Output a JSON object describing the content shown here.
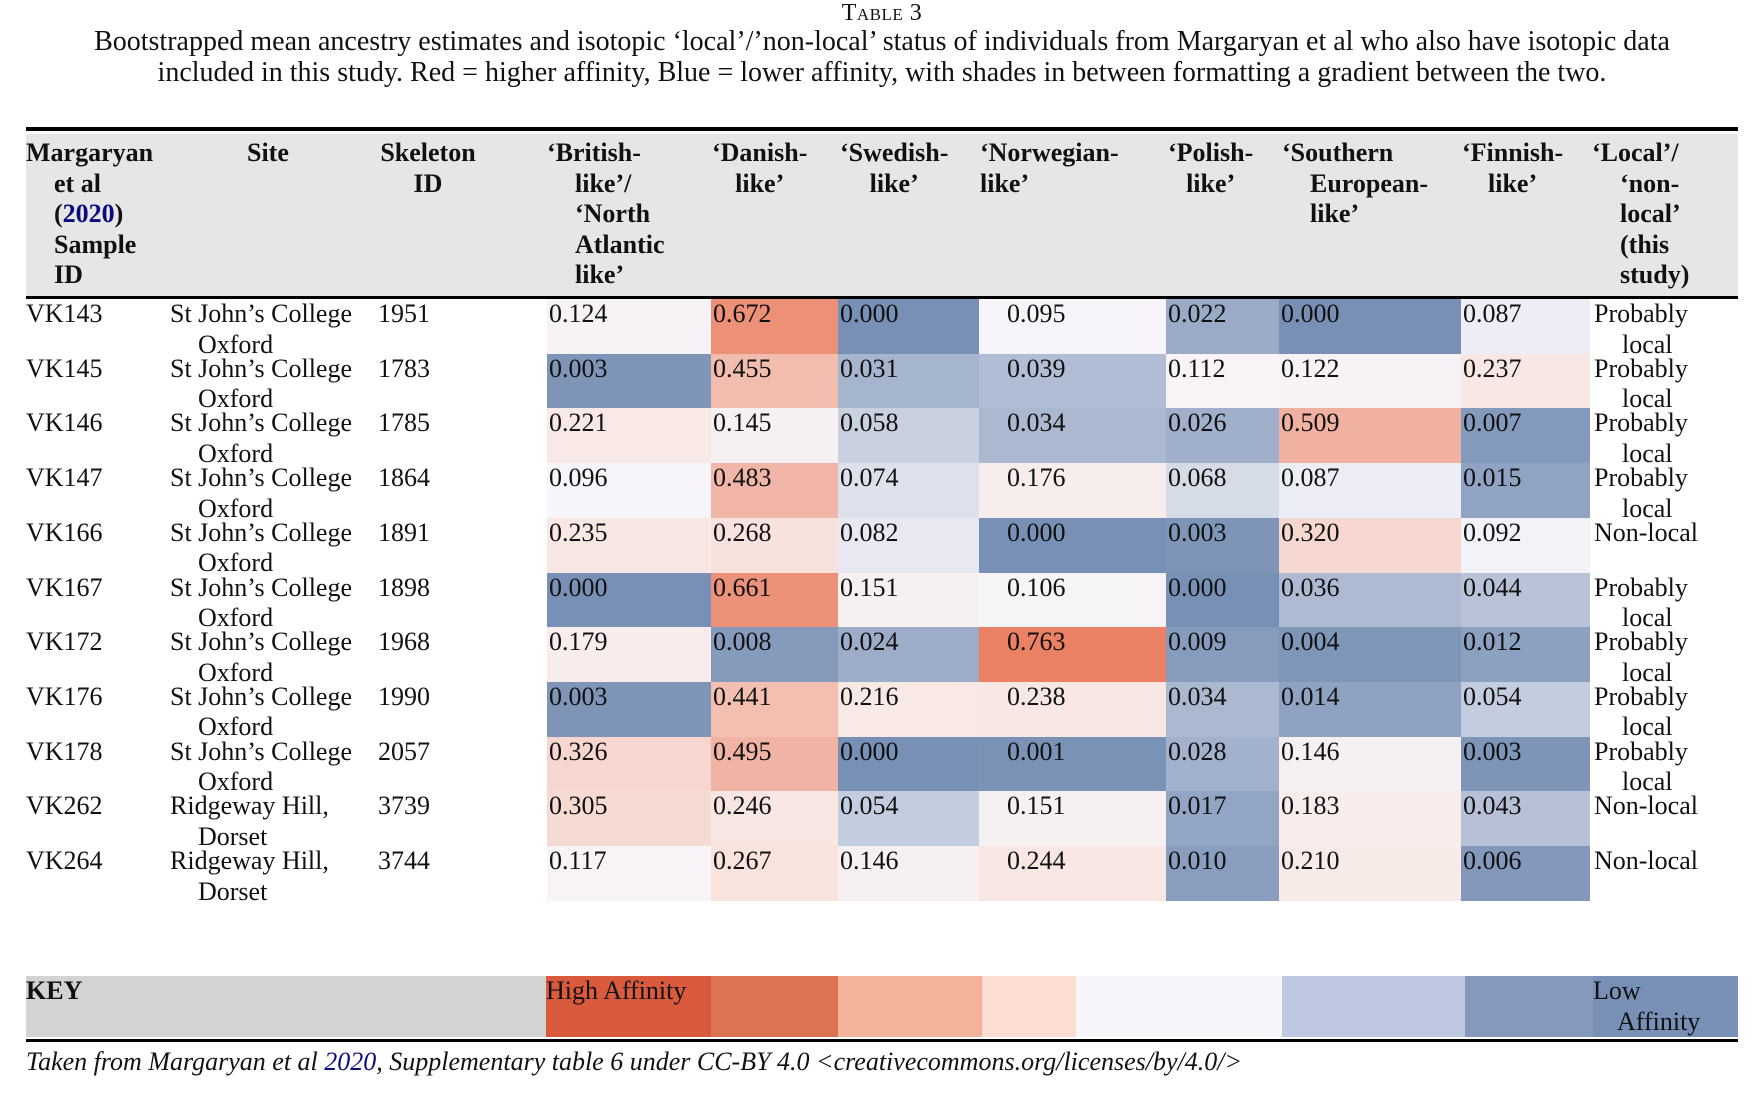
{
  "caption": {
    "label": "Table 3",
    "text": "Bootstrapped mean ancestry estimates and isotopic ‘local’/’non-local’ status of individuals from Margaryan et al who also have isotopic data included in this study. Red = higher affinity, Blue = lower affinity, with shades in between formatting a gradient between the two."
  },
  "header": {
    "sample_id": [
      "Margaryan",
      "et al",
      "(",
      "2020",
      ")",
      "Sample",
      "ID"
    ],
    "site": "Site",
    "skeleton_id": [
      "Skeleton",
      "ID"
    ],
    "british": [
      "‘British-",
      "like’/",
      "‘North",
      "Atlantic",
      "like’"
    ],
    "danish": [
      "‘Danish-",
      "like’"
    ],
    "swedish": [
      "‘Swedish-",
      "like’"
    ],
    "norwegian": [
      "‘Norwegian-",
      "like’"
    ],
    "polish": [
      "‘Polish-",
      "like’"
    ],
    "southern": [
      "‘Southern",
      "European-",
      "like’"
    ],
    "finnish": [
      "‘Finnish-",
      "like’"
    ],
    "local": [
      "‘Local’/",
      "‘non-",
      "local’",
      "(this",
      "study)"
    ]
  },
  "rows": [
    {
      "sample": "VK143",
      "site": [
        "St John’s College",
        "Oxford"
      ],
      "skeleton": "1951",
      "values": [
        "0.124",
        "0.672",
        "0.000",
        "0.095",
        "0.022",
        "0.000",
        "0.087"
      ],
      "status": [
        "Probably",
        "local"
      ]
    },
    {
      "sample": "VK145",
      "site": [
        "St John’s College",
        "Oxford"
      ],
      "skeleton": "1783",
      "values": [
        "0.003",
        "0.455",
        "0.031",
        "0.039",
        "0.112",
        "0.122",
        "0.237"
      ],
      "status": [
        "Probably",
        "local"
      ]
    },
    {
      "sample": "VK146",
      "site": [
        "St John’s College",
        "Oxford"
      ],
      "skeleton": "1785",
      "values": [
        "0.221",
        "0.145",
        "0.058",
        "0.034",
        "0.026",
        "0.509",
        "0.007"
      ],
      "status": [
        "Probably",
        "local"
      ]
    },
    {
      "sample": "VK147",
      "site": [
        "St John’s College",
        "Oxford"
      ],
      "skeleton": "1864",
      "values": [
        "0.096",
        "0.483",
        "0.074",
        "0.176",
        "0.068",
        "0.087",
        "0.015"
      ],
      "status": [
        "Probably",
        "local"
      ]
    },
    {
      "sample": "VK166",
      "site": [
        "St John’s College",
        "Oxford"
      ],
      "skeleton": "1891",
      "values": [
        "0.235",
        "0.268",
        "0.082",
        "0.000",
        "0.003",
        "0.320",
        "0.092"
      ],
      "status": [
        "Non-local",
        ""
      ]
    },
    {
      "sample": "VK167",
      "site": [
        "St John’s College",
        "Oxford"
      ],
      "skeleton": "1898",
      "values": [
        "0.000",
        "0.661",
        "0.151",
        "0.106",
        "0.000",
        "0.036",
        "0.044"
      ],
      "status": [
        "Probably",
        "local"
      ]
    },
    {
      "sample": "VK172",
      "site": [
        "St John’s College",
        "Oxford"
      ],
      "skeleton": "1968",
      "values": [
        "0.179",
        "0.008",
        "0.024",
        "0.763",
        "0.009",
        "0.004",
        "0.012"
      ],
      "status": [
        "Probably",
        "local"
      ]
    },
    {
      "sample": "VK176",
      "site": [
        "St John’s College",
        "Oxford"
      ],
      "skeleton": "1990",
      "values": [
        "0.003",
        "0.441",
        "0.216",
        "0.238",
        "0.034",
        "0.014",
        "0.054"
      ],
      "status": [
        "Probably",
        "local"
      ]
    },
    {
      "sample": "VK178",
      "site": [
        "St John’s College",
        "Oxford"
      ],
      "skeleton": "2057",
      "values": [
        "0.326",
        "0.495",
        "0.000",
        "0.001",
        "0.028",
        "0.146",
        "0.003"
      ],
      "status": [
        "Probably",
        "local"
      ]
    },
    {
      "sample": "VK262",
      "site": [
        "Ridgeway Hill,",
        "Dorset"
      ],
      "skeleton": "3739",
      "values": [
        "0.305",
        "0.246",
        "0.054",
        "0.151",
        "0.017",
        "0.183",
        "0.043"
      ],
      "status": [
        "Non-local",
        ""
      ]
    },
    {
      "sample": "VK264",
      "site": [
        "Ridgeway Hill,",
        "Dorset"
      ],
      "skeleton": "3744",
      "values": [
        "0.117",
        "0.267",
        "0.146",
        "0.244",
        "0.010",
        "0.210",
        "0.006"
      ],
      "status": [
        "Non-local",
        ""
      ]
    }
  ],
  "key": {
    "label": "KEY",
    "high": "High Affinity",
    "low": [
      "Low",
      "Affinity"
    ],
    "colors": [
      "#d95a3c",
      "#dc7451",
      "#f3b39a",
      "#fcddd3",
      "#f7f5fa",
      "#bec8e0",
      "#8698bb",
      "#7890b5"
    ]
  },
  "footer": {
    "prefix": "Taken from Margaryan et al ",
    "year_link": "2020",
    "suffix": ", Supplementary table 6 under CC-BY 4.0 <creativecommons.org/licenses/by/4.0/>"
  }
}
